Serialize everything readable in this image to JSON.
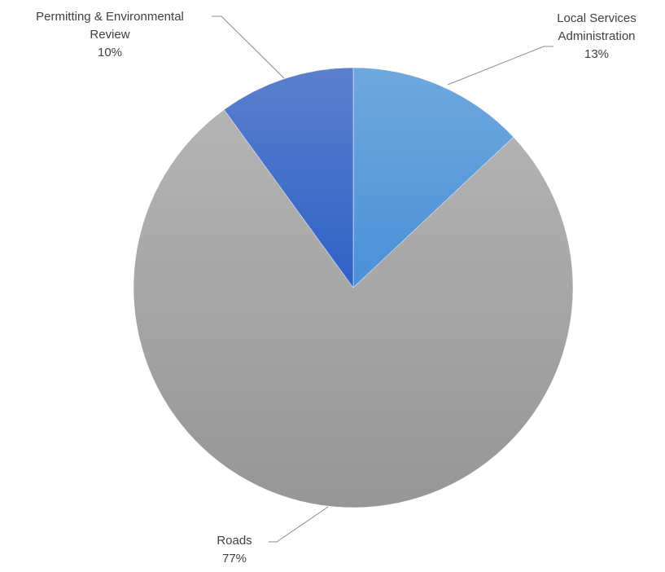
{
  "chart_data": {
    "type": "pie",
    "slices": [
      {
        "label": "Local Services Administration",
        "label_lines": [
          "Local Services",
          "Administration"
        ],
        "value": 13,
        "display": "13%",
        "color": "#5b9bd5"
      },
      {
        "label": "Roads",
        "label_lines": [
          "Roads"
        ],
        "value": 77,
        "display": "77%",
        "color": "#a5a5a5"
      },
      {
        "label": "Permitting & Environmental Review",
        "label_lines": [
          "Permitting & Environmental",
          "Review"
        ],
        "value": 10,
        "display": "10%",
        "color": "#4472c4"
      }
    ],
    "start_angle": "12 o'clock",
    "direction": "clockwise",
    "legend": "none",
    "data_labels": "outside-with-leader-lines"
  }
}
